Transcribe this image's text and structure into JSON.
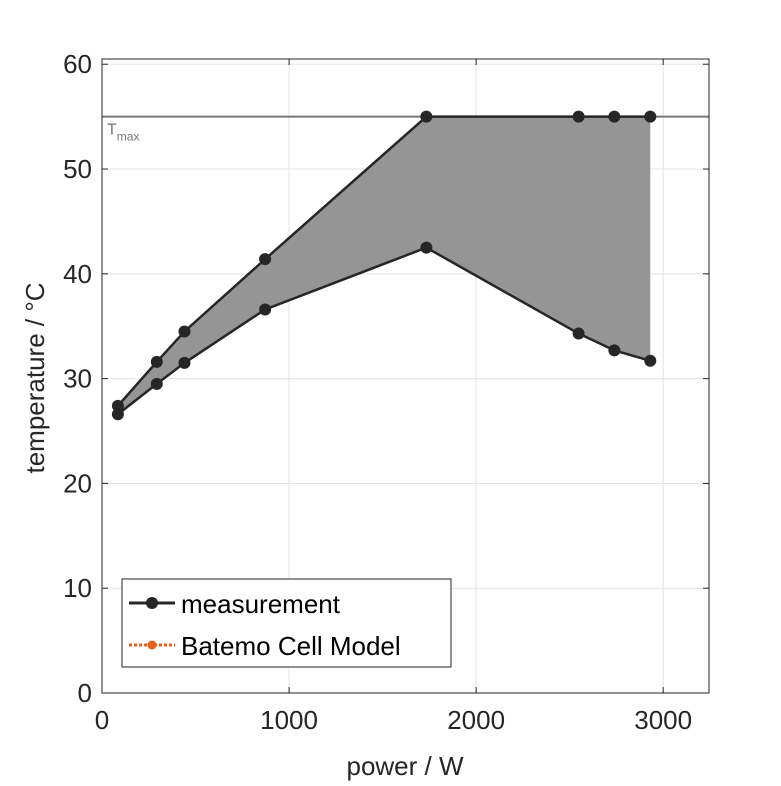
{
  "chart_data": {
    "type": "line",
    "title": "",
    "xlabel": "power / W",
    "ylabel": "temperature / °C",
    "xlim": [
      0,
      3245
    ],
    "ylim": [
      0,
      60.5
    ],
    "xticks": [
      0,
      1000,
      2000,
      3000
    ],
    "xtick_labels": [
      "0",
      "1000",
      "2000",
      "3000"
    ],
    "yticks": [
      0,
      10,
      20,
      30,
      40,
      50,
      60
    ],
    "ytick_labels": [
      "0",
      "10",
      "20",
      "30",
      "40",
      "50",
      "60"
    ],
    "grid": true,
    "reference_line": {
      "y": 55,
      "label_main": "T",
      "label_sub": "max",
      "color": "#777777"
    },
    "band_color": "#959595",
    "series": [
      {
        "name": "measurement (upper)",
        "color": "#262626",
        "x": [
          85,
          293,
          441,
          872,
          1734,
          2548,
          2739,
          2931
        ],
        "y": [
          27.4,
          31.6,
          34.5,
          41.4,
          55,
          55,
          55,
          55
        ]
      },
      {
        "name": "measurement (lower)",
        "color": "#262626",
        "x": [
          85,
          293,
          441,
          872,
          1734,
          2548,
          2739,
          2931
        ],
        "y": [
          26.6,
          29.5,
          31.5,
          36.6,
          42.5,
          34.3,
          32.7,
          31.7
        ]
      }
    ],
    "legend": {
      "placement": "bottom-left",
      "entries": [
        {
          "label": "measurement",
          "color": "#262626",
          "style": "solid"
        },
        {
          "label": "Batemo Cell Model",
          "color": "#e8601c",
          "style": "dotted"
        }
      ]
    }
  }
}
